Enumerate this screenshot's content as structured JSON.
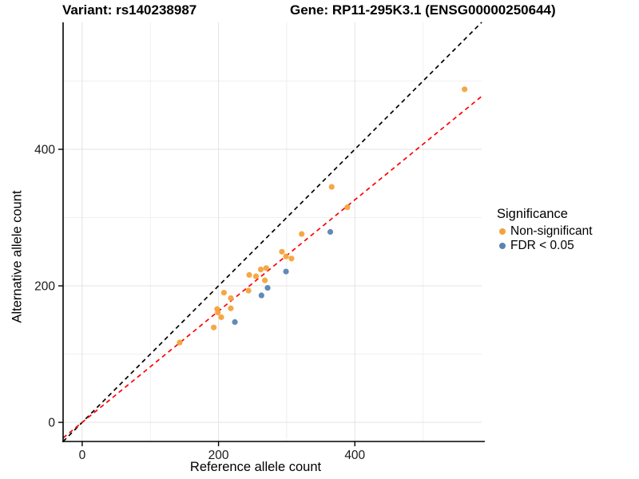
{
  "chart_data": {
    "type": "scatter",
    "title_left": "Variant: rs140238987",
    "title_right": "Gene: RP11-295K3.1 (ENSG00000250644)",
    "xlabel": "Reference allele count",
    "ylabel": "Alternative allele count",
    "xlim": [
      -28,
      586
    ],
    "ylim": [
      -28,
      586
    ],
    "x_ticks": [
      0,
      200,
      400
    ],
    "y_ticks": [
      0,
      200,
      400
    ],
    "x_minor_ticks": [
      100,
      300,
      500
    ],
    "y_minor_ticks": [
      100,
      300,
      500
    ],
    "grid": "major and minor, light gray, white panel background",
    "legend": {
      "title": "Significance",
      "position": "right",
      "items": [
        {
          "label": "Non-significant",
          "color": "#F3A33B"
        },
        {
          "label": "FDR < 0.05",
          "color": "#5884B3"
        }
      ]
    },
    "series": [
      {
        "name": "Non-significant",
        "color": "#F3A33B",
        "points": [
          [
            561,
            488
          ],
          [
            366,
            345
          ],
          [
            389,
            315
          ],
          [
            322,
            276
          ],
          [
            293,
            250
          ],
          [
            299,
            243
          ],
          [
            307,
            240
          ],
          [
            262,
            224
          ],
          [
            270,
            226
          ],
          [
            245,
            216
          ],
          [
            255,
            214
          ],
          [
            268,
            208
          ],
          [
            244,
            193
          ],
          [
            208,
            190
          ],
          [
            218,
            182
          ],
          [
            218,
            167
          ],
          [
            198,
            166
          ],
          [
            199,
            161
          ],
          [
            204,
            154
          ],
          [
            193,
            139
          ],
          [
            143,
            117
          ]
        ]
      },
      {
        "name": "FDR < 0.05",
        "color": "#5884B3",
        "points": [
          [
            364,
            279
          ],
          [
            299,
            221
          ],
          [
            272,
            197
          ],
          [
            263,
            186
          ],
          [
            224,
            147
          ]
        ]
      }
    ],
    "lines": [
      {
        "name": "identity-line",
        "slope": 1,
        "intercept": 0,
        "color": "#000000",
        "style": "dashed"
      },
      {
        "name": "fit-line",
        "slope": 0.815,
        "intercept": 0,
        "color": "#FF0000",
        "style": "dashed"
      }
    ],
    "style": {
      "grid_major_color": "#E3E3E3",
      "grid_minor_color": "#F0F0F0",
      "axis_color": "#000000",
      "point_radius": 3.6
    }
  }
}
